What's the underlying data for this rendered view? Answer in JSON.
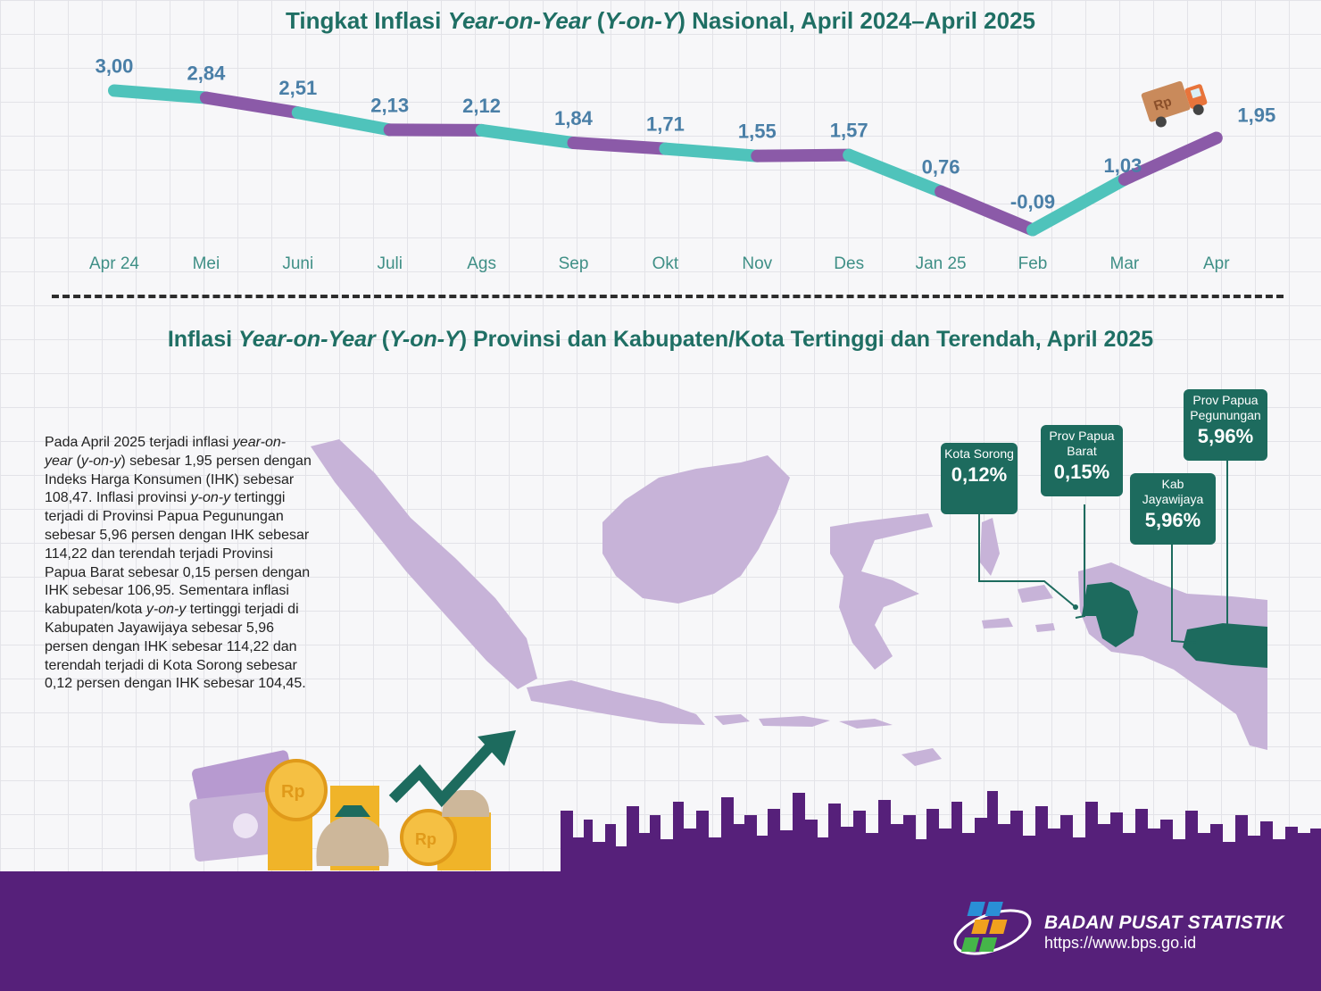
{
  "header": {
    "title1_a": "Tingkat Inflasi ",
    "title1_b": "Year-on-Year",
    "title1_c": " (",
    "title1_d": "Y-on-Y",
    "title1_e": ") Nasional, April 2024–April 2025",
    "title2_a": "Inflasi ",
    "title2_b": "Year-on-Year",
    "title2_c": " (",
    "title2_d": "Y-on-Y",
    "title2_e": ") Provinsi dan Kabupaten/Kota Tertinggi dan Terendah, April 2025"
  },
  "chart_data": {
    "type": "line",
    "categories": [
      "Apr 24",
      "Mei",
      "Juni",
      "Juli",
      "Ags",
      "Sep",
      "Okt",
      "Nov",
      "Des",
      "Jan 25",
      "Feb",
      "Mar",
      "Apr"
    ],
    "values": [
      3.0,
      2.84,
      2.51,
      2.13,
      2.12,
      1.84,
      1.71,
      1.55,
      1.57,
      0.76,
      -0.09,
      1.03,
      1.95
    ],
    "value_labels": [
      "3,00",
      "2,84",
      "2,51",
      "2,13",
      "2,12",
      "1,84",
      "1,71",
      "1,55",
      "1,57",
      "0,76",
      "-0,09",
      "1,03",
      "1,95"
    ],
    "colors": [
      "#4fc3bb",
      "#8b5aa8"
    ],
    "label_color": "#4a7fa7",
    "category_color": "#3f8f86",
    "grid": false
  },
  "paragraph": {
    "s1": "Pada April 2025 terjadi inflasi ",
    "s2": "year-on-year",
    "s3": " (",
    "s4": "y-on-y",
    "s5": ") sebesar 1,95 persen dengan Indeks Harga Konsumen (IHK) sebesar 108,47. Inflasi provinsi ",
    "s6": "y-on-y",
    "s7": " tertinggi terjadi di Provinsi Papua Pegunungan sebesar 5,96 persen dengan IHK sebesar 114,22 dan terendah terjadi Provinsi Papua Barat sebesar 0,15 persen dengan IHK sebesar 106,95. Sementara inflasi kabupaten/kota ",
    "s8": "y-on-y",
    "s9": " tertinggi terjadi di Kabupaten Jayawijaya sebesar 5,96 persen dengan IHK sebesar 114,22 dan terendah terjadi di Kota Sorong sebesar 0,12 persen dengan IHK sebesar 104,45."
  },
  "callouts": [
    {
      "label": "Kota Sorong",
      "value": "0,12%"
    },
    {
      "label": "Prov Papua Barat",
      "value": "0,15%"
    },
    {
      "label": "Kab Jayawijaya",
      "value": "5,96%"
    },
    {
      "label": "Prov Papua Pegunungan",
      "value": "5,96%"
    }
  ],
  "decor": {
    "currency": "Rp"
  },
  "footer": {
    "org_name": "BADAN PUSAT STATISTIK",
    "url": "https://www.bps.go.id"
  },
  "colors": {
    "map": "#c7b3d8",
    "highlight": "#1d6b5e",
    "footer": "#56207a",
    "title": "#1f6f64"
  }
}
